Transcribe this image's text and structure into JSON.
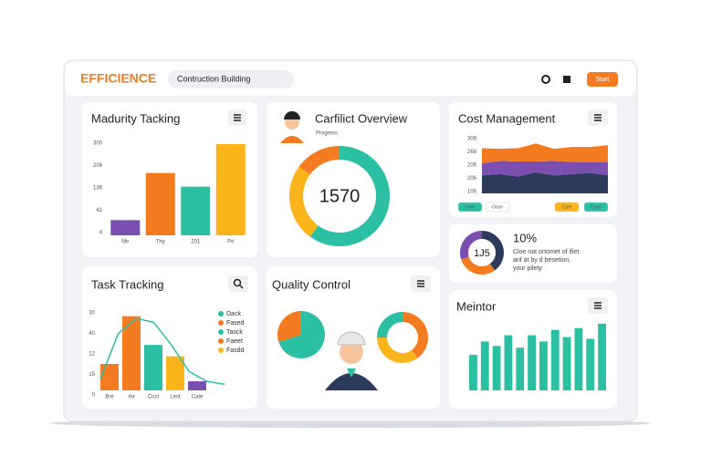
{
  "header": {
    "brand": "EFFICIENCE",
    "search": "Contruction Building",
    "button": "Start"
  },
  "maturity": {
    "title": "Madurity Tacking",
    "axis_labels": [
      "300",
      "206",
      "136",
      "41",
      "4"
    ],
    "categories": [
      "Mir",
      "Thy",
      "201",
      "Pri"
    ],
    "values": [
      50,
      205,
      160,
      300
    ],
    "colors": [
      "#7b4fb0",
      "#f47b20",
      "#2bbfa4",
      "#fbb41a"
    ],
    "ylim": [
      0,
      300
    ]
  },
  "conflict": {
    "title": "Carfilict Overview",
    "subtitle": "Progress",
    "center": "1570",
    "values": [
      60,
      25,
      15
    ],
    "colors": [
      "#2bbfa4",
      "#fbb41a",
      "#f47b20"
    ]
  },
  "cost": {
    "title": "Cost Management",
    "axis_labels": [
      "306",
      "268",
      "206",
      "206",
      "106"
    ],
    "ylim": [
      0,
      100
    ],
    "series": [
      {
        "color": "#2d3a5c",
        "values": [
          30,
          32,
          28,
          35,
          30,
          32,
          34,
          30
        ]
      },
      {
        "color": "#7b4fb0",
        "values": [
          20,
          22,
          25,
          18,
          24,
          20,
          18,
          22
        ]
      },
      {
        "color": "#f47b20",
        "values": [
          25,
          20,
          22,
          30,
          20,
          25,
          25,
          28
        ]
      }
    ],
    "buttons": [
      {
        "label": "Cost",
        "color": "#2bbfa4"
      },
      {
        "label": "Oase",
        "color": "#ffffff"
      },
      {
        "label": "Care",
        "color": "#fbb41a"
      },
      {
        "label": "Case",
        "color": "#2bbfa4"
      }
    ]
  },
  "summary": {
    "value": "10%",
    "center": "1J5",
    "lines": [
      "Cloe nat ortomet of ifiet",
      "anf at by d besetion,",
      "your pilety"
    ],
    "values": [
      40,
      30,
      30
    ],
    "colors": [
      "#2d3a5c",
      "#f47b20",
      "#7b4fb0"
    ]
  },
  "task": {
    "title": "Task Tracking",
    "axis_labels": [
      "30",
      "40",
      "12",
      "15",
      "0"
    ],
    "categories": [
      "Bre",
      "Air",
      "Cost",
      "Lest",
      "Cate"
    ],
    "values": [
      35,
      98,
      60,
      45,
      12
    ],
    "colors": [
      "#f47b20",
      "#f47b20",
      "#2bbfa4",
      "#fbb41a",
      "#7b4fb0"
    ],
    "ylim": [
      0,
      100
    ],
    "trend": {
      "color": "#2bbfa4",
      "values": [
        15,
        75,
        95,
        90,
        60,
        25,
        12,
        8
      ]
    },
    "legend": [
      {
        "name": "Dack",
        "color": "#2bbfa4"
      },
      {
        "name": "Fased",
        "color": "#f47b20"
      },
      {
        "name": "Tasck",
        "color": "#2bbfa4"
      },
      {
        "name": "Faeet",
        "color": "#f47b20"
      },
      {
        "name": "Fasdd",
        "color": "#fbb41a"
      }
    ]
  },
  "quality": {
    "title": "Quality Control",
    "pie": {
      "values": [
        70,
        30
      ],
      "colors": [
        "#2bbfa4",
        "#f47b20"
      ]
    },
    "donut": {
      "values": [
        40,
        35,
        25
      ],
      "colors": [
        "#f47b20",
        "#fbb41a",
        "#2bbfa4"
      ]
    }
  },
  "mentor": {
    "title": "Meintor",
    "values": [
      40,
      55,
      50,
      62,
      48,
      62,
      55,
      68,
      60,
      70,
      58,
      75
    ],
    "color": "#2bbfa4",
    "ylim": [
      0,
      80
    ]
  }
}
